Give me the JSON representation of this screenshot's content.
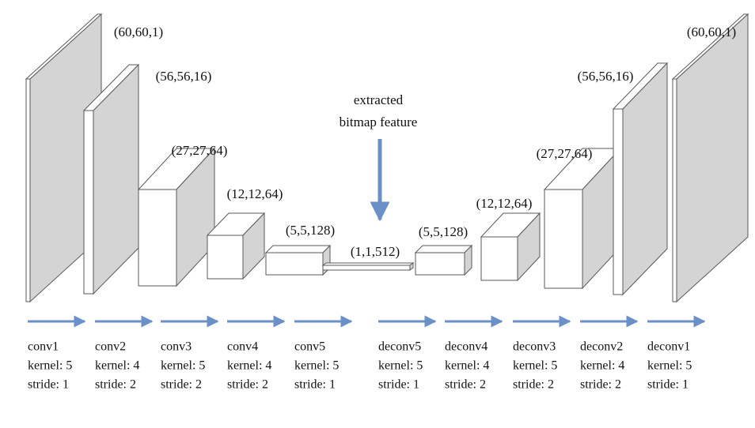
{
  "shapes": [
    "(60,60,1)",
    "(56,56,16)",
    "(27,27,64)",
    "(12,12,64)",
    "(5,5,128)",
    "(1,1,512)",
    "(5,5,128)",
    "(12,12,64)",
    "(27,27,64)",
    "(56,56,16)",
    "(60,60,1)"
  ],
  "annotation": [
    "extracted",
    "bitmap feature"
  ],
  "layers": [
    {
      "name": "conv1",
      "kernel": "kernel: 5",
      "stride": "stride: 1"
    },
    {
      "name": "conv2",
      "kernel": "kernel: 4",
      "stride": "stride: 2"
    },
    {
      "name": "conv3",
      "kernel": "kernel: 5",
      "stride": "stride: 2"
    },
    {
      "name": "conv4",
      "kernel": "kernel: 4",
      "stride": "stride: 2"
    },
    {
      "name": "conv5",
      "kernel": "kernel: 5",
      "stride": "stride: 1"
    },
    {
      "name": "deconv5",
      "kernel": "kernel: 5",
      "stride": "stride: 1"
    },
    {
      "name": "deconv4",
      "kernel": "kernel: 4",
      "stride": "stride: 2"
    },
    {
      "name": "deconv3",
      "kernel": "kernel: 5",
      "stride": "stride: 2"
    },
    {
      "name": "deconv2",
      "kernel": "kernel: 4",
      "stride": "stride: 2"
    },
    {
      "name": "deconv1",
      "kernel": "kernel: 5",
      "stride": "stride: 1"
    }
  ]
}
